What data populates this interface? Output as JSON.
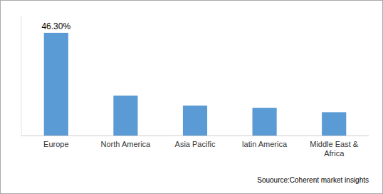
{
  "chart_data": {
    "type": "bar",
    "categories": [
      "Europe",
      "North America",
      "Asia Pacific",
      "latin America",
      "Middle East &\nAfrica"
    ],
    "values": [
      46.3,
      18.0,
      13.5,
      12.5,
      10.5
    ],
    "value_labels": [
      "46.30%",
      null,
      null,
      null,
      null
    ],
    "data_labels": true,
    "color": "#5B9BD5",
    "ylim": [
      0,
      54
    ],
    "yticks": [],
    "grid": false,
    "tick_labels": "x",
    "source": "Souource:Coherent market insights"
  }
}
